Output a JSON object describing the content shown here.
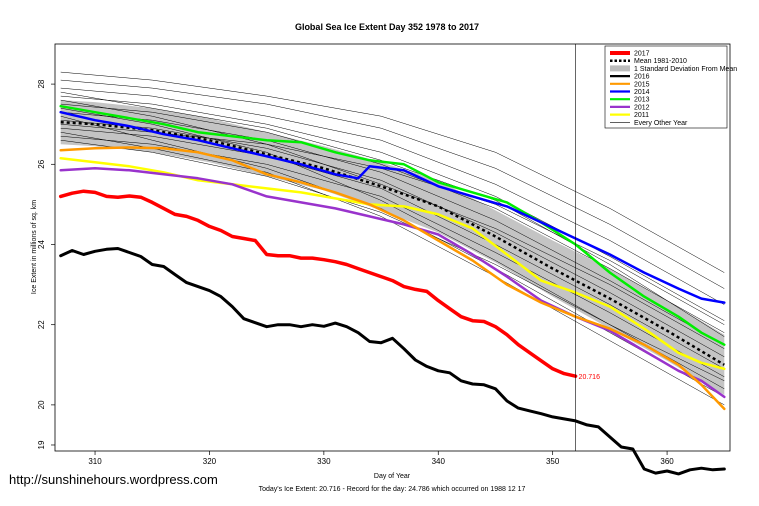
{
  "watermark": "http://sunshinehours.wordpress.com",
  "chart_data": {
    "type": "line",
    "title": "Global Sea Ice Extent Day 352 1978 to 2017",
    "xlabel": "Day of Year",
    "ylabel": "Ice Extent in millions of sq. km",
    "xlim": [
      306.5,
      365.5
    ],
    "ylim": [
      18.85,
      29.0
    ],
    "xticks": [
      310,
      320,
      330,
      340,
      350,
      360
    ],
    "yticks": [
      19,
      20,
      22,
      24,
      26,
      28
    ],
    "marker_day": 352,
    "grid": false,
    "legend_position": "top-right",
    "current_value_label": "20.716",
    "footer": "Today's Ice Extent: 20.716  - Record for the day: 24.786 which occurred on 1988 12 17",
    "legend": [
      {
        "label": "2017",
        "color": "#ff0000",
        "style": "thick"
      },
      {
        "label": "Mean 1981-2010",
        "color": "#000000",
        "style": "dotted"
      },
      {
        "label": "1 Standard Deviation From Mean",
        "color": "#bbbbbb",
        "style": "box"
      },
      {
        "label": "2016",
        "color": "#000000",
        "style": "line"
      },
      {
        "label": "2015",
        "color": "#ff9900",
        "style": "line"
      },
      {
        "label": "2014",
        "color": "#0000ff",
        "style": "line"
      },
      {
        "label": "2013",
        "color": "#00ee00",
        "style": "line"
      },
      {
        "label": "2012",
        "color": "#9933cc",
        "style": "line"
      },
      {
        "label": "2011",
        "color": "#ffff00",
        "style": "line"
      },
      {
        "label": "Every Other Year",
        "color": "#000000",
        "style": "thin"
      }
    ],
    "mean": {
      "x": [
        307,
        310,
        315,
        320,
        325,
        330,
        335,
        340,
        345,
        350,
        355,
        360,
        365
      ],
      "y": [
        27.05,
        27.0,
        26.85,
        26.6,
        26.25,
        25.9,
        25.45,
        24.95,
        24.2,
        23.4,
        22.65,
        21.85,
        21.0
      ]
    },
    "std_band": {
      "x": [
        307,
        310,
        315,
        320,
        325,
        330,
        335,
        340,
        345,
        350,
        355,
        360,
        365
      ],
      "lower": [
        26.5,
        26.45,
        26.3,
        26.05,
        25.7,
        25.35,
        24.85,
        24.3,
        23.55,
        22.7,
        21.9,
        21.1,
        20.25
      ],
      "upper": [
        27.6,
        27.55,
        27.4,
        27.15,
        26.8,
        26.45,
        26.05,
        25.6,
        24.85,
        24.1,
        23.4,
        22.6,
        21.75
      ]
    },
    "series": [
      {
        "name": "2017",
        "color": "#ff0000",
        "width": 3.5,
        "x": [
          307,
          308,
          309,
          310,
          311,
          312,
          313,
          314,
          315,
          316,
          317,
          318,
          319,
          320,
          321,
          322,
          323,
          324,
          325,
          326,
          327,
          328,
          329,
          330,
          331,
          332,
          333,
          334,
          335,
          336,
          337,
          338,
          339,
          340,
          341,
          342,
          343,
          344,
          345,
          346,
          347,
          348,
          349,
          350,
          351,
          352
        ],
        "y": [
          25.2,
          25.28,
          25.33,
          25.3,
          25.2,
          25.18,
          25.21,
          25.18,
          25.05,
          24.9,
          24.75,
          24.7,
          24.6,
          24.45,
          24.35,
          24.2,
          24.15,
          24.1,
          23.75,
          23.72,
          23.72,
          23.66,
          23.66,
          23.62,
          23.57,
          23.5,
          23.4,
          23.3,
          23.2,
          23.1,
          22.95,
          22.88,
          22.83,
          22.6,
          22.4,
          22.2,
          22.1,
          22.08,
          21.95,
          21.75,
          21.5,
          21.3,
          21.1,
          20.9,
          20.78,
          20.716
        ]
      },
      {
        "name": "2016",
        "color": "#000000",
        "width": 3,
        "x": [
          307,
          308,
          309,
          310,
          311,
          312,
          313,
          314,
          315,
          316,
          317,
          318,
          319,
          320,
          321,
          322,
          323,
          324,
          325,
          326,
          327,
          328,
          329,
          330,
          331,
          332,
          333,
          334,
          335,
          336,
          337,
          338,
          339,
          340,
          341,
          342,
          343,
          344,
          345,
          346,
          347,
          348,
          349,
          350,
          351,
          352,
          353,
          354,
          355,
          356,
          357,
          358,
          359,
          360,
          361,
          362,
          363,
          364,
          365
        ],
        "y": [
          23.72,
          23.85,
          23.75,
          23.83,
          23.88,
          23.9,
          23.8,
          23.7,
          23.5,
          23.45,
          23.25,
          23.05,
          22.95,
          22.85,
          22.7,
          22.45,
          22.15,
          22.05,
          21.95,
          22.0,
          22.0,
          21.95,
          22.0,
          21.96,
          22.04,
          21.95,
          21.8,
          21.58,
          21.55,
          21.66,
          21.4,
          21.12,
          20.96,
          20.85,
          20.8,
          20.6,
          20.52,
          20.5,
          20.4,
          20.1,
          19.92,
          19.85,
          19.78,
          19.7,
          19.65,
          19.6,
          19.5,
          19.45,
          19.2,
          18.95,
          18.9,
          18.4,
          18.3,
          18.35,
          18.28,
          18.38,
          18.42,
          18.38,
          18.4
        ]
      },
      {
        "name": "2015",
        "color": "#ff9900",
        "width": 2.5,
        "x": [
          307,
          310,
          313,
          316,
          319,
          322,
          325,
          328,
          331,
          334,
          337,
          340,
          343,
          346,
          349,
          352,
          355,
          358,
          361,
          363,
          365
        ],
        "y": [
          26.35,
          26.4,
          26.42,
          26.4,
          26.3,
          26.1,
          25.75,
          25.55,
          25.3,
          25.0,
          24.6,
          24.1,
          23.6,
          23.0,
          22.55,
          22.2,
          21.9,
          21.5,
          21.0,
          20.5,
          19.9
        ]
      },
      {
        "name": "2014",
        "color": "#0000ff",
        "width": 2.5,
        "x": [
          307,
          310,
          313,
          316,
          319,
          322,
          325,
          328,
          331,
          333,
          334,
          337,
          340,
          343,
          346,
          349,
          352,
          355,
          358,
          361,
          363,
          365
        ],
        "y": [
          27.3,
          27.1,
          26.95,
          26.75,
          26.6,
          26.4,
          26.2,
          26.0,
          25.75,
          25.65,
          25.95,
          25.85,
          25.45,
          25.2,
          24.95,
          24.55,
          24.15,
          23.75,
          23.3,
          22.9,
          22.65,
          22.55
        ]
      },
      {
        "name": "2013",
        "color": "#00ee00",
        "width": 2.5,
        "x": [
          307,
          310,
          313,
          316,
          319,
          322,
          325,
          328,
          331,
          334,
          337,
          340,
          343,
          346,
          349,
          352,
          355,
          358,
          361,
          363,
          365
        ],
        "y": [
          27.45,
          27.3,
          27.15,
          27.0,
          26.8,
          26.7,
          26.6,
          26.55,
          26.3,
          26.1,
          26.0,
          25.55,
          25.3,
          25.05,
          24.55,
          24.0,
          23.3,
          22.7,
          22.2,
          21.8,
          21.5
        ]
      },
      {
        "name": "2012",
        "color": "#9933cc",
        "width": 2.5,
        "x": [
          307,
          310,
          313,
          316,
          319,
          322,
          325,
          328,
          331,
          334,
          337,
          340,
          343,
          346,
          349,
          352,
          355,
          358,
          361,
          363,
          365
        ],
        "y": [
          25.85,
          25.9,
          25.85,
          25.75,
          25.65,
          25.5,
          25.2,
          25.05,
          24.9,
          24.7,
          24.5,
          24.25,
          23.75,
          23.2,
          22.6,
          22.2,
          21.85,
          21.35,
          20.85,
          20.6,
          20.2
        ]
      },
      {
        "name": "2011",
        "color": "#ffff00",
        "width": 2.5,
        "x": [
          307,
          310,
          313,
          316,
          319,
          322,
          325,
          328,
          331,
          334,
          337,
          340,
          343,
          346,
          349,
          352,
          355,
          358,
          361,
          363,
          365
        ],
        "y": [
          26.15,
          26.05,
          25.95,
          25.8,
          25.6,
          25.5,
          25.4,
          25.3,
          25.15,
          25.0,
          24.95,
          24.75,
          24.4,
          23.75,
          23.1,
          22.8,
          22.45,
          21.9,
          21.3,
          21.05,
          20.9
        ]
      }
    ],
    "other_years": [
      {
        "x": [
          307,
          315,
          325,
          335,
          345,
          355,
          365
        ],
        "y": [
          28.3,
          28.1,
          27.7,
          27.2,
          26.3,
          24.9,
          23.3
        ]
      },
      {
        "x": [
          307,
          315,
          325,
          335,
          345,
          355,
          365
        ],
        "y": [
          28.1,
          27.9,
          27.5,
          26.9,
          25.9,
          24.5,
          22.9
        ]
      },
      {
        "x": [
          307,
          315,
          325,
          335,
          345,
          355,
          365
        ],
        "y": [
          27.9,
          27.7,
          27.2,
          26.6,
          25.5,
          24.1,
          22.5
        ]
      },
      {
        "x": [
          307,
          315,
          325,
          335,
          345,
          355,
          365
        ],
        "y": [
          27.7,
          27.5,
          27.0,
          26.3,
          25.2,
          23.7,
          22.1
        ]
      },
      {
        "x": [
          307,
          315,
          325,
          335,
          345,
          355,
          365
        ],
        "y": [
          27.5,
          27.3,
          26.8,
          26.0,
          24.9,
          23.4,
          21.8
        ]
      },
      {
        "x": [
          307,
          315,
          325,
          335,
          345,
          355,
          365
        ],
        "y": [
          27.3,
          27.1,
          26.6,
          25.8,
          24.6,
          23.1,
          21.5
        ]
      },
      {
        "x": [
          307,
          315,
          325,
          335,
          345,
          355,
          365
        ],
        "y": [
          27.1,
          26.9,
          26.4,
          25.6,
          24.3,
          22.8,
          21.2
        ]
      },
      {
        "x": [
          307,
          315,
          325,
          335,
          345,
          355,
          365
        ],
        "y": [
          26.9,
          26.7,
          26.2,
          25.4,
          24.0,
          22.5,
          20.9
        ]
      },
      {
        "x": [
          307,
          315,
          325,
          335,
          345,
          355,
          365
        ],
        "y": [
          26.7,
          26.5,
          26.0,
          25.2,
          23.8,
          22.3,
          20.7
        ]
      },
      {
        "x": [
          307,
          315,
          325,
          335,
          345,
          355,
          365
        ],
        "y": [
          27.4,
          27.0,
          26.3,
          25.1,
          23.6,
          22.0,
          20.4
        ]
      },
      {
        "x": [
          307,
          315,
          325,
          335,
          345,
          355,
          365
        ],
        "y": [
          27.2,
          26.6,
          25.9,
          24.9,
          23.4,
          21.8,
          20.2
        ]
      },
      {
        "x": [
          307,
          315,
          325,
          335,
          345,
          355,
          365
        ],
        "y": [
          26.8,
          26.4,
          25.8,
          24.7,
          23.2,
          21.6,
          20.0
        ]
      },
      {
        "x": [
          307,
          315,
          325,
          335,
          345,
          355,
          365
        ],
        "y": [
          27.6,
          27.2,
          26.5,
          25.5,
          24.4,
          23.0,
          21.4
        ]
      },
      {
        "x": [
          307,
          315,
          325,
          335,
          345,
          355,
          365
        ],
        "y": [
          27.0,
          26.8,
          26.5,
          25.9,
          25.0,
          23.6,
          22.0
        ]
      },
      {
        "x": [
          307,
          315,
          325,
          335,
          345,
          355,
          365
        ],
        "y": [
          26.6,
          26.3,
          25.7,
          24.8,
          23.5,
          22.0,
          20.6
        ]
      },
      {
        "x": [
          307,
          315,
          325,
          335,
          345,
          355,
          365
        ],
        "y": [
          27.8,
          27.4,
          26.9,
          26.1,
          25.1,
          23.5,
          21.7
        ]
      }
    ]
  }
}
